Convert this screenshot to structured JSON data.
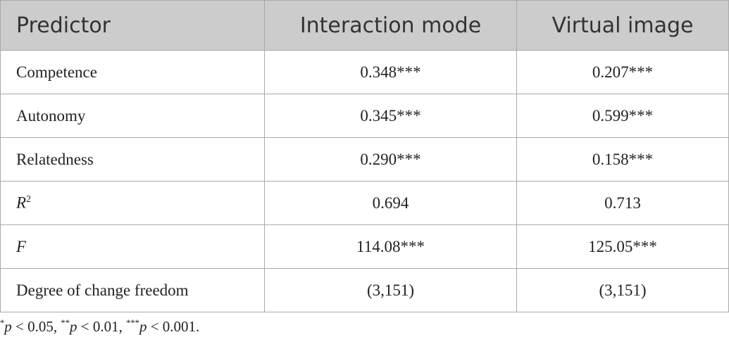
{
  "table": {
    "header": [
      "Predictor",
      "Interaction mode",
      "Virtual image"
    ],
    "rows": [
      [
        "Competence",
        "0.348***",
        "0.207***"
      ],
      [
        "Autonomy",
        "0.345***",
        "0.599***"
      ],
      [
        "Relatedness",
        "0.290***",
        "0.158***"
      ],
      [
        [
          {
            "italic": "R"
          },
          {
            "sup": "2"
          }
        ],
        "0.694",
        "0.713"
      ],
      [
        [
          {
            "italic": "F"
          }
        ],
        "114.08***",
        "125.05***"
      ],
      [
        "Degree of change freedom",
        "(3,151)",
        "(3,151)"
      ]
    ]
  },
  "footnote": [
    {
      "sup": "*"
    },
    {
      "italic": "p"
    },
    {
      "text": " < 0.05, "
    },
    {
      "sup": "**"
    },
    {
      "italic": "p"
    },
    {
      "text": " < 0.01, "
    },
    {
      "sup": "***"
    },
    {
      "italic": "p"
    },
    {
      "text": " < 0.001."
    }
  ]
}
